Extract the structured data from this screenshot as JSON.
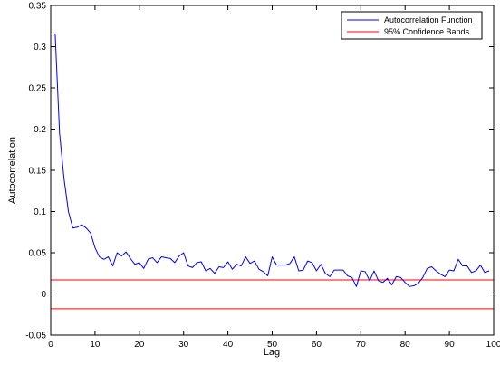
{
  "chart_data": {
    "type": "line",
    "title": "",
    "xlabel": "Lag",
    "ylabel": "Autocorrelation",
    "xlim": [
      0,
      100
    ],
    "ylim": [
      -0.05,
      0.35
    ],
    "xticks": [
      0,
      10,
      20,
      30,
      40,
      50,
      60,
      70,
      80,
      90,
      100
    ],
    "yticks": [
      -0.05,
      0,
      0.05,
      0.1,
      0.15,
      0.2,
      0.25,
      0.3,
      0.35
    ],
    "ytick_labels": [
      "-0.05",
      "0",
      "0.05",
      "0.1",
      "0.15",
      "0.2",
      "0.25",
      "0.3",
      "0.35"
    ],
    "grid": false,
    "legend_position": "top-right",
    "series": [
      {
        "name": "Autocorrelation Function",
        "color": "#0000ff",
        "x": [
          1,
          2,
          3,
          4,
          5,
          6,
          7,
          8,
          9,
          10,
          11,
          12,
          13,
          14,
          15,
          16,
          17,
          18,
          19,
          20,
          21,
          22,
          23,
          24,
          25,
          26,
          27,
          28,
          29,
          30,
          31,
          32,
          33,
          34,
          35,
          36,
          37,
          38,
          39,
          40,
          41,
          42,
          43,
          44,
          45,
          46,
          47,
          48,
          49,
          50,
          51,
          52,
          53,
          54,
          55,
          56,
          57,
          58,
          59,
          60,
          61,
          62,
          63,
          64,
          65,
          66,
          67,
          68,
          69,
          70,
          71,
          72,
          73,
          74,
          75,
          76,
          77,
          78,
          79,
          80,
          81,
          82,
          83,
          84,
          85,
          86,
          87,
          88,
          89,
          90,
          91,
          92,
          93,
          94,
          95,
          96,
          97,
          98,
          99
        ],
        "values": [
          0.316,
          0.195,
          0.14,
          0.1,
          0.08,
          0.081,
          0.084,
          0.08,
          0.074,
          0.056,
          0.045,
          0.042,
          0.045,
          0.034,
          0.05,
          0.046,
          0.051,
          0.043,
          0.036,
          0.038,
          0.031,
          0.042,
          0.044,
          0.038,
          0.045,
          0.044,
          0.043,
          0.038,
          0.046,
          0.05,
          0.034,
          0.032,
          0.038,
          0.039,
          0.028,
          0.031,
          0.025,
          0.033,
          0.032,
          0.039,
          0.03,
          0.036,
          0.034,
          0.045,
          0.037,
          0.04,
          0.03,
          0.027,
          0.022,
          0.045,
          0.035,
          0.035,
          0.035,
          0.037,
          0.045,
          0.028,
          0.029,
          0.04,
          0.038,
          0.028,
          0.036,
          0.025,
          0.021,
          0.029,
          0.029,
          0.029,
          0.022,
          0.02,
          0.009,
          0.028,
          0.027,
          0.016,
          0.028,
          0.016,
          0.014,
          0.019,
          0.011,
          0.021,
          0.02,
          0.014,
          0.009,
          0.01,
          0.013,
          0.02,
          0.031,
          0.033,
          0.028,
          0.024,
          0.021,
          0.029,
          0.028,
          0.042,
          0.034,
          0.034,
          0.026,
          0.028,
          0.035,
          0.026,
          0.028
        ]
      },
      {
        "name": "95% Confidence Bands",
        "color": "#ff0000",
        "bands": [
          0.017,
          -0.018
        ]
      }
    ]
  }
}
